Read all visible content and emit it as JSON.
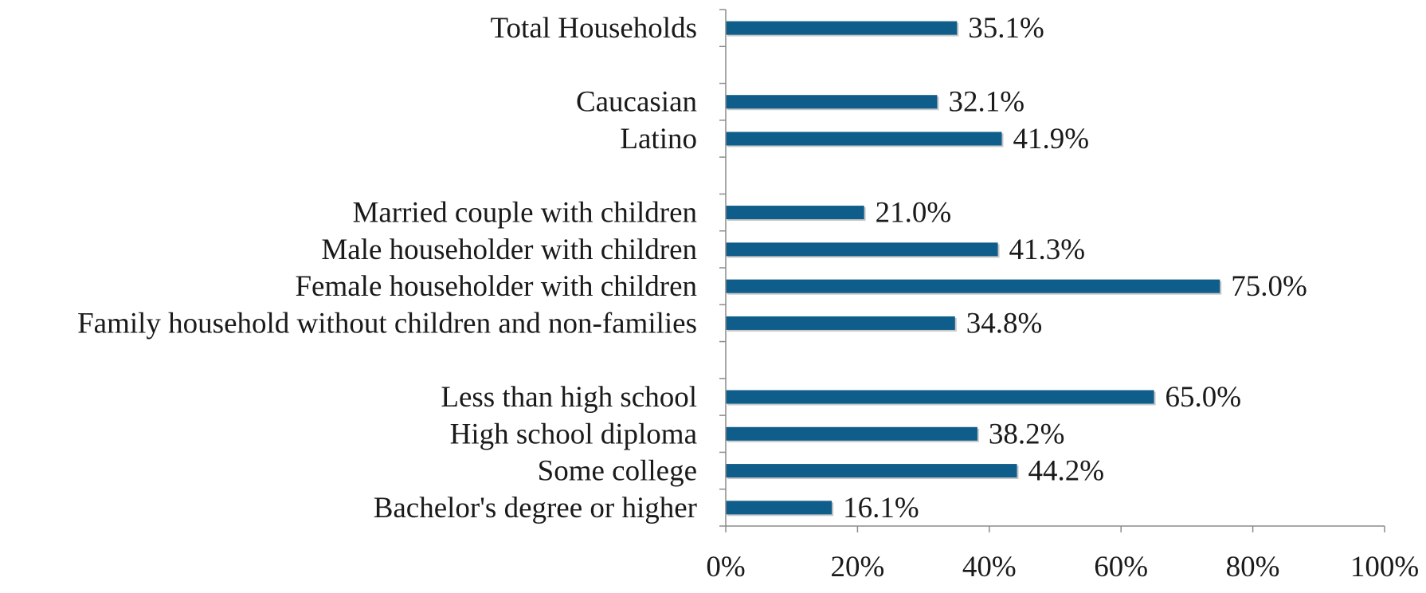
{
  "chart_data": {
    "type": "bar",
    "orientation": "horizontal",
    "title": "",
    "xlabel": "",
    "ylabel": "",
    "xlim": [
      0,
      100
    ],
    "grid": false,
    "legend": "none",
    "categories": [
      "Total Households",
      "",
      "Caucasian",
      "Latino",
      "",
      "Married couple with children",
      "Male householder with children",
      "Female householder with children",
      "Family household without children and non-families",
      "",
      "Less than high school",
      "High school diploma",
      "Some college",
      "Bachelor's degree or higher"
    ],
    "values": [
      35.1,
      null,
      32.1,
      41.9,
      null,
      21.0,
      41.3,
      75.0,
      34.8,
      null,
      65.0,
      38.2,
      44.2,
      16.1
    ],
    "data_labels": [
      "35.1%",
      "",
      "32.1%",
      "41.9%",
      "",
      "21.0%",
      "41.3%",
      "75.0%",
      "34.8%",
      "",
      "65.0%",
      "38.2%",
      "44.2%",
      "16.1%"
    ],
    "x_ticks": [
      "0%",
      "20%",
      "40%",
      "60%",
      "80%",
      "100%"
    ],
    "x_tick_values": [
      0,
      20,
      40,
      60,
      80,
      100
    ],
    "colors": {
      "bar": "#0e5d8a",
      "axis": "#8c8c8c",
      "text": "#1a1a1a"
    }
  }
}
